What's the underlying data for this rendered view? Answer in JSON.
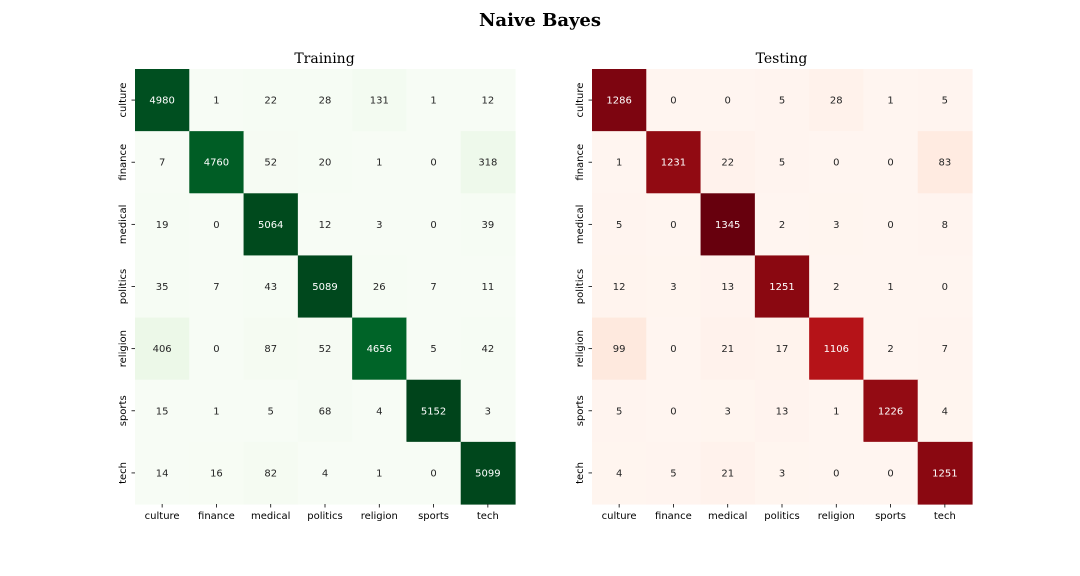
{
  "figure": {
    "title": "Naive Bayes"
  },
  "chart_data": [
    {
      "type": "heatmap",
      "title": "Training",
      "colormap": "Greens",
      "x_categories": [
        "culture",
        "finance",
        "medical",
        "politics",
        "religion",
        "sports",
        "tech"
      ],
      "y_categories": [
        "culture",
        "finance",
        "medical",
        "politics",
        "religion",
        "sports",
        "tech"
      ],
      "values": [
        [
          4980,
          1,
          22,
          28,
          131,
          1,
          12
        ],
        [
          7,
          4760,
          52,
          20,
          1,
          0,
          318
        ],
        [
          19,
          0,
          5064,
          12,
          3,
          0,
          39
        ],
        [
          35,
          7,
          43,
          5089,
          26,
          7,
          11
        ],
        [
          406,
          0,
          87,
          52,
          4656,
          5,
          42
        ],
        [
          15,
          1,
          5,
          68,
          4,
          5152,
          3
        ],
        [
          14,
          16,
          82,
          4,
          1,
          0,
          5099
        ]
      ],
      "colorbar": false,
      "annotations": true
    },
    {
      "type": "heatmap",
      "title": "Testing",
      "colormap": "Reds",
      "x_categories": [
        "culture",
        "finance",
        "medical",
        "politics",
        "religion",
        "sports",
        "tech"
      ],
      "y_categories": [
        "culture",
        "finance",
        "medical",
        "politics",
        "religion",
        "sports",
        "tech"
      ],
      "values": [
        [
          1286,
          0,
          0,
          5,
          28,
          1,
          5
        ],
        [
          1,
          1231,
          22,
          5,
          0,
          0,
          83
        ],
        [
          5,
          0,
          1345,
          2,
          3,
          0,
          8
        ],
        [
          12,
          3,
          13,
          1251,
          2,
          1,
          0
        ],
        [
          99,
          0,
          21,
          17,
          1106,
          2,
          7
        ],
        [
          5,
          0,
          3,
          13,
          1,
          1226,
          4
        ],
        [
          4,
          5,
          21,
          3,
          0,
          0,
          1251
        ]
      ],
      "colorbar": false,
      "annotations": true
    }
  ]
}
